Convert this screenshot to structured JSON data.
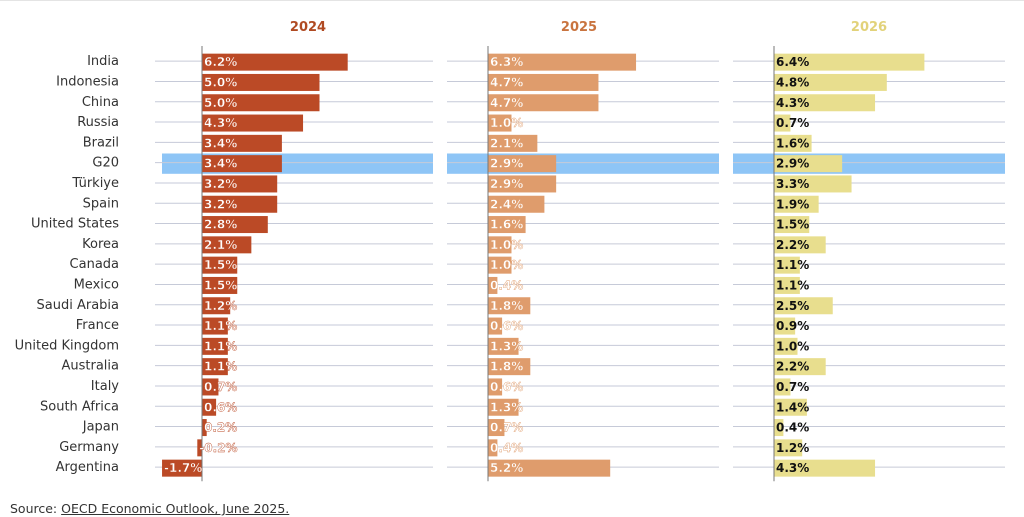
{
  "chart_data": {
    "type": "bar",
    "orientation": "horizontal",
    "categories": [
      "India",
      "Indonesia",
      "China",
      "Russia",
      "Brazil",
      "G20",
      "Türkiye",
      "Spain",
      "United States",
      "Korea",
      "Canada",
      "Mexico",
      "Saudi Arabia",
      "France",
      "United Kingdom",
      "Australia",
      "Italy",
      "South Africa",
      "Japan",
      "Germany",
      "Argentina"
    ],
    "highlight_category": "G20",
    "highlight_color": "#8ec5f6",
    "series": [
      {
        "name": "2024",
        "color": "#bb4a26",
        "title_color": "#b04a22",
        "label_color": "#ffffff",
        "values": [
          6.2,
          5.0,
          5.0,
          4.3,
          3.4,
          3.4,
          3.2,
          3.2,
          2.8,
          2.1,
          1.5,
          1.5,
          1.2,
          1.1,
          1.1,
          1.1,
          0.7,
          0.6,
          0.2,
          -0.2,
          -1.7
        ],
        "labels": [
          "6.2%",
          "5.0%",
          "5.0%",
          "4.3%",
          "3.4%",
          "3.4%",
          "3.2%",
          "3.2%",
          "2.8%",
          "2.1%",
          "1.5%",
          "1.5%",
          "1.2%",
          "1.1%",
          "1.1%",
          "1.1%",
          "0.7%",
          "0.6%",
          "0.2%",
          "-0.2%",
          "-1.7%"
        ]
      },
      {
        "name": "2025",
        "color": "#df9c6c",
        "title_color": "#c9743f",
        "label_color": "#ffffff",
        "values": [
          6.3,
          4.7,
          4.7,
          1.0,
          2.1,
          2.9,
          2.9,
          2.4,
          1.6,
          1.0,
          1.0,
          0.4,
          1.8,
          0.6,
          1.3,
          1.8,
          0.6,
          1.3,
          0.7,
          0.4,
          5.2
        ],
        "labels": [
          "6.3%",
          "4.7%",
          "4.7%",
          "1.0%",
          "2.1%",
          "2.9%",
          "2.9%",
          "2.4%",
          "1.6%",
          "1.0%",
          "1.0%",
          "0.4%",
          "1.8%",
          "0.6%",
          "1.3%",
          "1.8%",
          "0.6%",
          "1.3%",
          "0.7%",
          "0.4%",
          "5.2%"
        ]
      },
      {
        "name": "2026",
        "color": "#e8de8e",
        "title_color": "#e2d27a",
        "label_color": "#111111",
        "values": [
          6.4,
          4.8,
          4.3,
          0.7,
          1.6,
          2.9,
          3.3,
          1.9,
          1.5,
          2.2,
          1.1,
          1.1,
          2.5,
          0.9,
          1.0,
          2.2,
          0.7,
          1.4,
          0.4,
          1.2,
          4.3
        ],
        "labels": [
          "6.4%",
          "4.8%",
          "4.3%",
          "0.7%",
          "1.6%",
          "2.9%",
          "3.3%",
          "1.9%",
          "1.5%",
          "2.2%",
          "1.1%",
          "1.1%",
          "2.5%",
          "0.9%",
          "1.0%",
          "2.2%",
          "0.7%",
          "1.4%",
          "0.4%",
          "1.2%",
          "4.3%"
        ]
      }
    ],
    "colors": {
      "gridline": "#c6cad8",
      "axis": "#777777",
      "category_text": "#333333"
    }
  },
  "source": {
    "prefix": "Source: ",
    "link_text": "OECD Economic Outlook, June 2025."
  }
}
